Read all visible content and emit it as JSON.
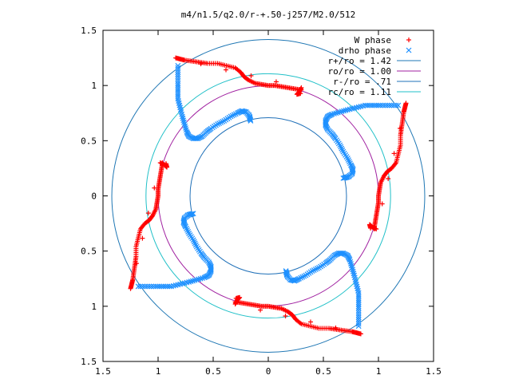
{
  "chart_data": {
    "type": "scatter",
    "title": "m4/n1.5/q2.0/r-+.50-j257/M2.0/512",
    "xlim": [
      -1.5,
      1.5
    ],
    "ylim": [
      -1.5,
      1.5
    ],
    "x_ticks": [
      -1.5,
      -1,
      -0.5,
      0,
      0.5,
      1,
      1.5
    ],
    "y_ticks": [
      -1.5,
      -1,
      -0.5,
      0,
      0.5,
      1,
      1.5
    ],
    "x_tick_labels": [
      "1.5",
      "1",
      "0.5",
      "0",
      "0.5",
      "1",
      "1.5"
    ],
    "y_tick_labels": [
      "1.5",
      "1",
      "0.5",
      "0",
      "0.5",
      "1",
      "1.5"
    ],
    "legend_position": "top-right",
    "circles": [
      {
        "label": "r+/ro = 1.42",
        "radius": 1.42,
        "color": "#1f77b4"
      },
      {
        "label": "ro/ro = 1.00",
        "radius": 1.0,
        "color": "#a020a0"
      },
      {
        "label": "r-/ro = .71",
        "radius": 0.71,
        "color": "#1f70b8"
      },
      {
        "label": "rc/ro = 1.11",
        "radius": 1.11,
        "color": "#20c0c8"
      }
    ],
    "series": [
      {
        "name": "W phase",
        "marker": "+",
        "color": "#ff0000"
      },
      {
        "name": "drho phase",
        "marker": "x",
        "color": "#1e90ff"
      }
    ],
    "arm_count": 4,
    "w_phase_points_base": [
      [
        0.3,
        0.96
      ],
      [
        0.24,
        0.97
      ],
      [
        0.18,
        0.98
      ],
      [
        0.12,
        0.99
      ],
      [
        0.06,
        1.0
      ],
      [
        0.0,
        1.0
      ],
      [
        -0.06,
        1.01
      ],
      [
        -0.12,
        1.02
      ],
      [
        -0.18,
        1.05
      ],
      [
        -0.22,
        1.08
      ],
      [
        -0.25,
        1.12
      ],
      [
        -0.3,
        1.16
      ],
      [
        -0.38,
        1.18
      ],
      [
        -0.46,
        1.2
      ],
      [
        -0.55,
        1.2
      ],
      [
        -0.62,
        1.21
      ],
      [
        -0.69,
        1.22
      ],
      [
        -0.76,
        1.23
      ],
      [
        -0.8,
        1.24
      ],
      [
        -0.84,
        1.25
      ],
      [
        0.3,
        0.98
      ],
      [
        0.28,
        0.94
      ],
      [
        0.26,
        0.92
      ],
      [
        0.3,
        0.93
      ]
    ],
    "drho_phase_points_base": [
      [
        -0.82,
        1.18
      ],
      [
        -0.82,
        1.1
      ],
      [
        -0.82,
        1.02
      ],
      [
        -0.82,
        0.95
      ],
      [
        -0.82,
        0.88
      ],
      [
        -0.8,
        0.8
      ],
      [
        -0.78,
        0.72
      ],
      [
        -0.76,
        0.65
      ],
      [
        -0.74,
        0.58
      ],
      [
        -0.72,
        0.54
      ],
      [
        -0.68,
        0.52
      ],
      [
        -0.64,
        0.52
      ],
      [
        -0.6,
        0.54
      ],
      [
        -0.56,
        0.58
      ],
      [
        -0.52,
        0.61
      ],
      [
        -0.46,
        0.65
      ],
      [
        -0.4,
        0.68
      ],
      [
        -0.34,
        0.72
      ],
      [
        -0.28,
        0.75
      ],
      [
        -0.24,
        0.77
      ],
      [
        -0.2,
        0.76
      ],
      [
        -0.17,
        0.72
      ],
      [
        -0.16,
        0.68
      ],
      [
        -0.18,
        0.75
      ]
    ]
  }
}
